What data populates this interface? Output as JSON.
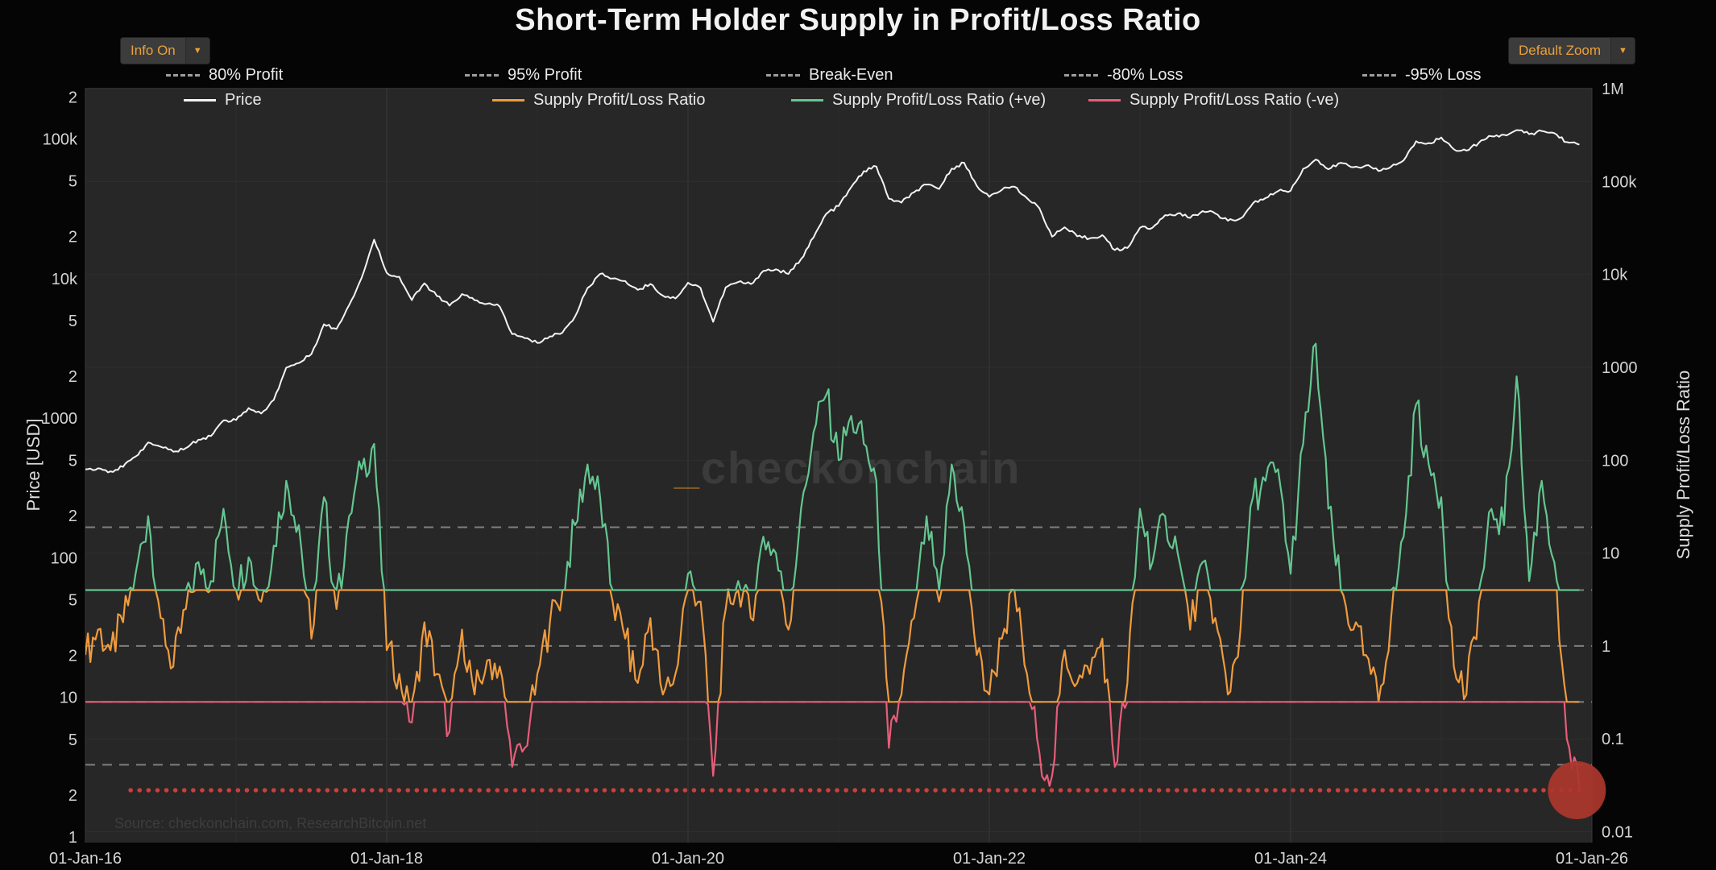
{
  "header": {
    "title": "Short-Term Holder Supply in Profit/Loss Ratio"
  },
  "controls": {
    "info_button": {
      "label": "Info On",
      "arrow": "▼"
    },
    "zoom_button": {
      "label": "Default Zoom",
      "arrow": "▼"
    }
  },
  "watermark": {
    "accent": "_",
    "text": "checkonchain"
  },
  "source_note": "Source: checkonchain.com, ResearchBitcoin.net",
  "chart_data": {
    "type": "line",
    "title": "Short-Term Holder Supply in Profit/Loss Ratio",
    "background": "#272727",
    "x_axis": {
      "scale": "time",
      "range_years": [
        2016,
        2026
      ],
      "ticks": [
        {
          "label": "01-Jan-16",
          "t": 2016
        },
        {
          "label": "01-Jan-18",
          "t": 2018
        },
        {
          "label": "01-Jan-20",
          "t": 2020
        },
        {
          "label": "01-Jan-22",
          "t": 2022
        },
        {
          "label": "01-Jan-24",
          "t": 2024
        },
        {
          "label": "01-Jan-26",
          "t": 2026
        }
      ]
    },
    "left_axis": {
      "label": "Price [USD]",
      "scale": "log",
      "range": [
        1,
        200000
      ],
      "ticks": [
        {
          "label": "1",
          "v": 1
        },
        {
          "label": "2",
          "v": 2
        },
        {
          "label": "5",
          "v": 5
        },
        {
          "label": "10",
          "v": 10
        },
        {
          "label": "2",
          "v": 20
        },
        {
          "label": "5",
          "v": 50
        },
        {
          "label": "100",
          "v": 100
        },
        {
          "label": "2",
          "v": 200
        },
        {
          "label": "5",
          "v": 500
        },
        {
          "label": "1000",
          "v": 1000
        },
        {
          "label": "2",
          "v": 2000
        },
        {
          "label": "5",
          "v": 5000
        },
        {
          "label": "10k",
          "v": 10000
        },
        {
          "label": "2",
          "v": 20000
        },
        {
          "label": "5",
          "v": 50000
        },
        {
          "label": "100k",
          "v": 100000
        },
        {
          "label": "2",
          "v": 200000
        }
      ]
    },
    "right_axis": {
      "label": "Supply Profit/Loss Ratio",
      "scale": "log",
      "range": [
        0.01,
        1000000
      ],
      "ticks": [
        {
          "label": "1M",
          "v": 1000000
        },
        {
          "label": "100k",
          "v": 100000
        },
        {
          "label": "10k",
          "v": 10000
        },
        {
          "label": "1000",
          "v": 1000
        },
        {
          "label": "100",
          "v": 100
        },
        {
          "label": "10",
          "v": 10
        },
        {
          "label": "1",
          "v": 1
        },
        {
          "label": "0.1",
          "v": 0.1
        },
        {
          "label": "0.01",
          "v": 0.01
        }
      ]
    },
    "threshold_legend": [
      {
        "label": "80% Profit",
        "value": 4
      },
      {
        "label": "95% Profit",
        "value": 19
      },
      {
        "label": "Break-Even",
        "value": 1
      },
      {
        "label": "-80% Loss",
        "value": 0.25
      },
      {
        "label": "-95% Loss",
        "value": 0.0526
      }
    ],
    "threshold_style": {
      "color": "#9d9d9d",
      "dash": "dashed"
    },
    "series_legend": [
      {
        "label": "Price",
        "color": "#f3f3f3",
        "axis": "left"
      },
      {
        "label": "Supply Profit/Loss Ratio",
        "color": "#ef9b3e",
        "axis": "right"
      },
      {
        "label": "Supply Profit/Loss Ratio (+ve)",
        "color": "#64c690",
        "axis": "right"
      },
      {
        "label": "Supply Profit/Loss Ratio (-ve)",
        "color": "#e75d79",
        "axis": "right"
      }
    ],
    "clip_positive": 4,
    "clip_negative": 0.25,
    "start_month": "2016-01",
    "price_monthly": [
      430,
      437,
      416,
      448,
      531,
      670,
      624,
      575,
      610,
      700,
      745,
      963,
      970,
      1180,
      1080,
      1350,
      2300,
      2480,
      2875,
      4700,
      4360,
      6450,
      10100,
      19000,
      11000,
      10300,
      7000,
      9250,
      7500,
      6400,
      7750,
      7000,
      6600,
      6300,
      4000,
      3740,
      3460,
      3850,
      4100,
      5350,
      8560,
      10800,
      10000,
      9600,
      8300,
      9150,
      7550,
      7200,
      9350,
      8550,
      4900,
      8650,
      9450,
      9140,
      11350,
      11650,
      10780,
      13800,
      19700,
      29000,
      33100,
      45200,
      58800,
      63500,
      37300,
      35000,
      41500,
      47150,
      43800,
      61300,
      67500,
      46200,
      38500,
      43200,
      45500,
      37650,
      31800,
      19950,
      23300,
      20050,
      19400,
      20500,
      16000,
      16550,
      23100,
      23150,
      28450,
      29250,
      27200,
      30450,
      29250,
      25950,
      26950,
      34650,
      37700,
      42250,
      42600,
      61150,
      71300,
      60650,
      67500,
      62700,
      64600,
      58950,
      63300,
      70200,
      96400,
      93400,
      102400,
      84350,
      82550,
      94200,
      104600,
      107100,
      115750,
      108200,
      114000,
      110000,
      95000,
      91000
    ],
    "ratio_monthly": [
      0.8,
      1.5,
      0.9,
      1.8,
      6,
      25,
      2,
      0.6,
      2.5,
      8,
      5,
      30,
      4,
      9,
      3,
      12,
      60,
      20,
      1.2,
      40,
      2.5,
      25,
      80,
      150,
      0.9,
      0.5,
      0.15,
      1.8,
      0.5,
      0.12,
      1.5,
      0.3,
      0.7,
      0.6,
      0.05,
      0.08,
      0.5,
      1.8,
      4,
      20,
      90,
      40,
      3,
      1.2,
      0.4,
      2,
      0.3,
      0.5,
      6,
      3,
      0.04,
      2.5,
      5,
      2,
      15,
      10,
      1.5,
      30,
      200,
      500,
      100,
      300,
      150,
      60,
      0.08,
      0.3,
      2,
      25,
      3,
      90,
      20,
      0.8,
      0.3,
      1.2,
      4,
      0.5,
      0.07,
      0.04,
      0.9,
      0.4,
      0.5,
      1.2,
      0.05,
      0.4,
      30,
      8,
      25,
      10,
      1.5,
      8,
      2,
      0.3,
      1.5,
      40,
      60,
      80,
      6,
      150,
      1800,
      30,
      4,
      1.5,
      0.8,
      0.25,
      2,
      15,
      400,
      90,
      40,
      0.6,
      0.3,
      3,
      30,
      20,
      800,
      5,
      60,
      8,
      0.1,
      0.03
    ],
    "annotations": {
      "dotted_level_line": {
        "value": 0.028,
        "from_t": 2016.3,
        "to_t": 2025.95,
        "color": "#c8413a"
      },
      "end_marker": {
        "t": 2025.9,
        "value": 0.028,
        "radius": 36,
        "color": "#ad362d"
      }
    },
    "grid": {
      "vertical": "yearly",
      "horizontal": "right-axis-decades"
    },
    "legend_position": "top-inside"
  }
}
